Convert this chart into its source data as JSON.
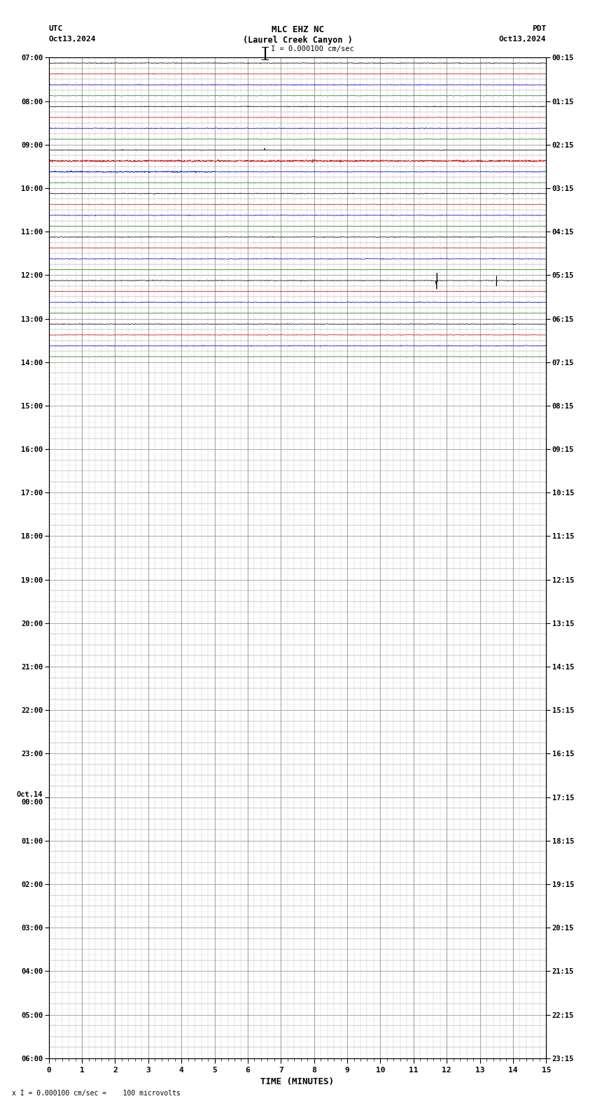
{
  "title_line1": "MLC EHZ NC",
  "title_line2": "(Laurel Creek Canyon )",
  "title_scale": "I = 0.000100 cm/sec",
  "left_label": "UTC",
  "left_date": "Oct13,2024",
  "right_label": "PDT",
  "right_date": "Oct13,2024",
  "xlabel": "TIME (MINUTES)",
  "footnote": "x I = 0.000100 cm/sec =    100 microvolts",
  "xmin": 0,
  "xmax": 15,
  "bg_color": "#ffffff",
  "grid_color": "#888888",
  "trace_colors": [
    "#000000",
    "#cc0000",
    "#0000cc",
    "#007700"
  ],
  "active_hours": 7,
  "total_rows": 92,
  "left_times_major": [
    "07:00",
    "08:00",
    "09:00",
    "10:00",
    "11:00",
    "12:00",
    "13:00",
    "14:00",
    "15:00",
    "16:00",
    "17:00",
    "18:00",
    "19:00",
    "20:00",
    "21:00",
    "22:00",
    "23:00",
    "Oct.14\n00:00",
    "01:00",
    "02:00",
    "03:00",
    "04:00",
    "05:00",
    "06:00"
  ],
  "right_times_major": [
    "00:15",
    "01:15",
    "02:15",
    "03:15",
    "04:15",
    "05:15",
    "06:15",
    "07:15",
    "08:15",
    "09:15",
    "10:15",
    "11:15",
    "12:15",
    "13:15",
    "14:15",
    "15:15",
    "16:15",
    "17:15",
    "18:15",
    "19:15",
    "20:15",
    "21:15",
    "22:15",
    "23:15"
  ]
}
